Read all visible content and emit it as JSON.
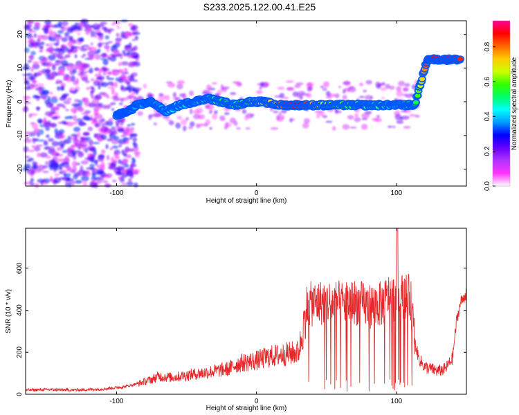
{
  "title": "S233.2025.122.00.41.E25",
  "colors": {
    "snr_line": "#e8272a",
    "frame": "#000000",
    "colormap": [
      "#ffffff",
      "#ff33ff",
      "#b233ff",
      "#6600ff",
      "#0000ff",
      "#0099ff",
      "#00ffff",
      "#00ff66",
      "#33ff00",
      "#ccff00",
      "#ffcc00",
      "#ff6600",
      "#ff0000",
      "#ff0099"
    ]
  },
  "chart_data": [
    {
      "id": "spectrogram",
      "type": "heatmap",
      "xlabel": "Height of straight line (km)",
      "ylabel": "Frequency (Hz)",
      "xlim": [
        -165,
        150
      ],
      "ylim": [
        -25,
        24
      ],
      "xticks": [
        -100,
        0,
        100
      ],
      "xtick_labels": [
        "-100",
        "0",
        "100"
      ],
      "yticks": [
        20,
        10,
        0,
        -10,
        -20
      ],
      "ytick_labels": [
        "20",
        "10",
        "0",
        "-10",
        "-20"
      ],
      "colorbar": {
        "label": "Normalized spectral amplitude",
        "range": [
          0,
          0.95
        ],
        "ticks": [
          0.0,
          0.2,
          0.4,
          0.6,
          0.8
        ],
        "tick_labels": [
          "0.0",
          "0.2",
          "0.4",
          "0.6",
          "0.8"
        ]
      },
      "ridge": [
        {
          "x": -100,
          "y": -4,
          "amp": 0.35
        },
        {
          "x": -92,
          "y": -3,
          "amp": 0.3
        },
        {
          "x": -85,
          "y": -1,
          "amp": 0.4
        },
        {
          "x": -75,
          "y": 0,
          "amp": 0.35
        },
        {
          "x": -65,
          "y": -3,
          "amp": 0.4
        },
        {
          "x": -55,
          "y": -1,
          "amp": 0.45
        },
        {
          "x": -45,
          "y": 0,
          "amp": 0.35
        },
        {
          "x": -35,
          "y": 1,
          "amp": 0.45
        },
        {
          "x": -25,
          "y": 0,
          "amp": 0.55
        },
        {
          "x": -15,
          "y": -1,
          "amp": 0.5
        },
        {
          "x": -5,
          "y": 0,
          "amp": 0.6
        },
        {
          "x": 5,
          "y": 0,
          "amp": 0.7
        },
        {
          "x": 15,
          "y": -1,
          "amp": 0.75
        },
        {
          "x": 25,
          "y": -1,
          "amp": 0.9
        },
        {
          "x": 35,
          "y": -1,
          "amp": 0.85
        },
        {
          "x": 45,
          "y": -1,
          "amp": 0.65
        },
        {
          "x": 55,
          "y": -1,
          "amp": 0.6
        },
        {
          "x": 65,
          "y": -1,
          "amp": 0.55
        },
        {
          "x": 75,
          "y": -1,
          "amp": 0.5
        },
        {
          "x": 85,
          "y": -1,
          "amp": 0.5
        },
        {
          "x": 95,
          "y": -1,
          "amp": 0.45
        },
        {
          "x": 105,
          "y": -1,
          "amp": 0.5
        },
        {
          "x": 113,
          "y": -1,
          "amp": 0.5
        },
        {
          "x": 122,
          "y": 12.5,
          "amp": 0.85
        },
        {
          "x": 130,
          "y": 12.5,
          "amp": 0.9
        },
        {
          "x": 138,
          "y": 12.5,
          "amp": 0.88
        },
        {
          "x": 146,
          "y": 12.5,
          "amp": 0.85
        }
      ]
    },
    {
      "id": "snr",
      "type": "line",
      "xlabel": "Height of straight line (km)",
      "ylabel": "SNR (10 * v/v)",
      "xlim": [
        -165,
        150
      ],
      "ylim": [
        0,
        790
      ],
      "xticks": [
        -100,
        0,
        100
      ],
      "xtick_labels": [
        "-100",
        "0",
        "100"
      ],
      "yticks": [
        0,
        200,
        400,
        600
      ],
      "ytick_labels": [
        "0",
        "200",
        "400",
        "600"
      ],
      "x": [
        -165,
        -150,
        -130,
        -110,
        -95,
        -85,
        -75,
        -70,
        -60,
        -50,
        -40,
        -30,
        -20,
        -15,
        -10,
        0,
        10,
        20,
        30,
        33,
        36,
        40,
        50,
        60,
        70,
        80,
        90,
        95,
        100,
        105,
        110,
        113,
        116,
        120,
        125,
        130,
        135,
        140,
        143,
        146,
        150
      ],
      "y": [
        20,
        22,
        20,
        25,
        35,
        50,
        70,
        85,
        80,
        90,
        100,
        110,
        120,
        140,
        150,
        160,
        180,
        190,
        200,
        300,
        420,
        430,
        440,
        430,
        440,
        420,
        430,
        470,
        450,
        470,
        460,
        250,
        170,
        130,
        120,
        110,
        120,
        170,
        350,
        440,
        480
      ]
    }
  ]
}
